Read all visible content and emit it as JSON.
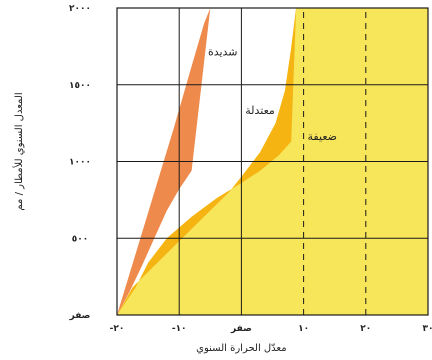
{
  "chart_data": {
    "type": "area",
    "xlabel": "معدّل الحرارة السنوي",
    "ylabel": "المعدل السنوي للأمطار / مم",
    "xlim": [
      -20,
      30
    ],
    "ylim": [
      0,
      2000
    ],
    "x_ticks": [
      -20,
      -10,
      0,
      10,
      20,
      30
    ],
    "x_tick_labels": [
      "-٢٠",
      "-١٠",
      "صفر",
      "١٠",
      "٢٠",
      "٣٠"
    ],
    "y_ticks": [
      0,
      500,
      1000,
      1500,
      2000
    ],
    "y_tick_labels": [
      "صفر",
      "٥٠٠",
      "١٠٠٠",
      "١٥٠٠",
      "٢٠٠٠"
    ],
    "grid": true,
    "dashed_vertical_lines_at": [
      10,
      20
    ],
    "regions": [
      {
        "label": "ضعيفة",
        "color": "#f7e55a",
        "label_at": [
          13,
          1140
        ]
      },
      {
        "label": "معتدلة",
        "color": "#f5b411",
        "label_at": [
          3,
          1310
        ]
      },
      {
        "label": "شديدة",
        "color": "#ee8a4c",
        "label_at": [
          -3,
          1690
        ]
      }
    ],
    "boundaries": {
      "moderate_upper": [
        [
          -20,
          0
        ],
        [
          -17.5,
          180
        ],
        [
          -14,
          320
        ],
        [
          -10,
          480
        ],
        [
          -6,
          640
        ],
        [
          -2,
          800
        ],
        [
          0,
          900
        ],
        [
          3,
          1060
        ],
        [
          5.5,
          1250
        ],
        [
          7,
          1460
        ],
        [
          8,
          1740
        ],
        [
          8.8,
          2000
        ]
      ],
      "severe_upper": [
        [
          -20,
          0
        ],
        [
          -17,
          400
        ],
        [
          -14,
          800
        ],
        [
          -11,
          1200
        ],
        [
          -8,
          1620
        ],
        [
          -6,
          1900
        ],
        [
          -5,
          2000
        ]
      ],
      "moderate_lower": [
        [
          -20,
          0
        ],
        [
          -17,
          180
        ],
        [
          -15,
          340
        ],
        [
          -12,
          500
        ],
        [
          -8,
          640
        ],
        [
          -4,
          760
        ],
        [
          0,
          860
        ],
        [
          3,
          940
        ],
        [
          6,
          1040
        ],
        [
          8,
          1130
        ]
      ],
      "severe_lower": [
        [
          -20,
          0
        ],
        [
          -18,
          150
        ],
        [
          -16,
          320
        ],
        [
          -14,
          500
        ],
        [
          -12,
          680
        ],
        [
          -10,
          820
        ],
        [
          -8,
          940
        ]
      ]
    },
    "colors": {
      "weak": "#f7e55a",
      "moderate": "#f5b411",
      "severe": "#ee8a4c",
      "grid": "#1a1a1a",
      "frame": "#1a1a1a"
    }
  }
}
